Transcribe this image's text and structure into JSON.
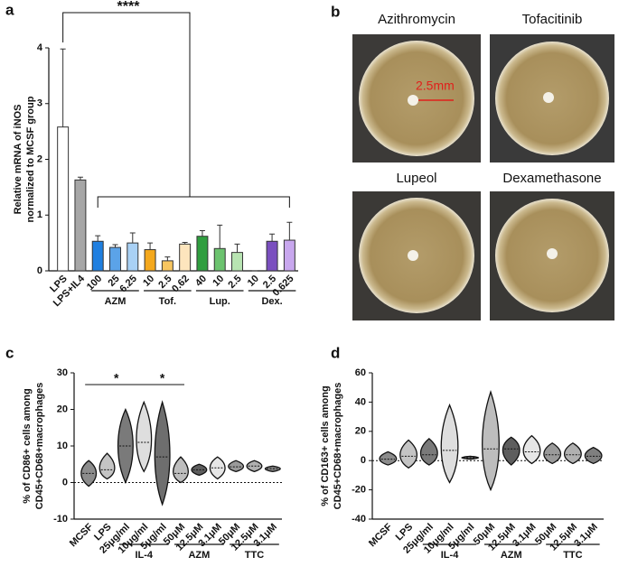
{
  "chart_data": [
    {
      "type": "bar",
      "panel": "a",
      "ylabel": [
        "Relative mRNA of iNOS",
        "normalized to MCSF group"
      ],
      "categories": [
        "LPS",
        "LPS+IL4",
        "100",
        "25",
        "6.25",
        "10",
        "2.5",
        "0.62",
        "40",
        "10",
        "2.5",
        "10",
        "2.5",
        "0.625"
      ],
      "values": [
        2.58,
        1.63,
        0.53,
        0.42,
        0.5,
        0.38,
        0.18,
        0.48,
        0.62,
        0.4,
        0.33,
        0,
        0.53,
        0.55
      ],
      "errors": [
        1.4,
        0.05,
        0.1,
        0.05,
        0.18,
        0.12,
        0.07,
        0.03,
        0.1,
        0.42,
        0.15,
        0,
        0.13,
        0.32
      ],
      "colors": [
        "#ffffff",
        "#a6a6a6",
        "#1f7fe0",
        "#5ba3e8",
        "#a9d1f5",
        "#f4a81d",
        "#f8c660",
        "#fde5bd",
        "#2f9e3f",
        "#6cc36f",
        "#b8e4b2",
        "#5b2c91",
        "#7a4fbf",
        "#c8a7ee"
      ],
      "groups": [
        "AZM",
        "Tof.",
        "Lup.",
        "Dex."
      ],
      "annotations": [
        "****"
      ],
      "ylim": [
        0,
        4
      ],
      "yticks": [
        0,
        1,
        2,
        3,
        4
      ]
    },
    {
      "type": "violin",
      "panel": "c",
      "ylabel": [
        "% of CD86+ cells among",
        "CD45+CD68+macrophages"
      ],
      "categories": [
        "MCSF",
        "LPS",
        "25μg/ml",
        "10μg/ml",
        "5μg/ml",
        "50μM",
        "12.5μM",
        "3.1μM",
        "50μM",
        "12.5μM",
        "3.1μM"
      ],
      "medians": [
        2.5,
        3.5,
        10,
        11,
        7,
        2.5,
        3.5,
        4,
        4.3,
        4.5,
        3.8
      ],
      "mins": [
        -1,
        1,
        0,
        3,
        -6,
        0,
        2,
        1,
        3,
        3,
        3
      ],
      "maxs": [
        6,
        8,
        20,
        22,
        22,
        7,
        5,
        7,
        6,
        6,
        4.5
      ],
      "colors": [
        "#8c8c8c",
        "#c4c4c4",
        "#7a7a7a",
        "#dedede",
        "#6e6e6e",
        "#bdbdbd",
        "#5e5e5e",
        "#e6e6e6",
        "#9a9a9a",
        "#b0b0b0",
        "#7f7f7f"
      ],
      "groups": [
        "IL-4",
        "AZM",
        "TTC"
      ],
      "annotations": [
        "*",
        "*"
      ],
      "ylim": [
        -10,
        30
      ],
      "yticks": [
        -10,
        0,
        10,
        20,
        30
      ]
    },
    {
      "type": "violin",
      "panel": "d",
      "ylabel": [
        "% of CD163+ cells among",
        "CD45+CD68+macrophages"
      ],
      "categories": [
        "MCSF",
        "LPS",
        "25μg/ml",
        "10μg/ml",
        "5μg/ml",
        "50μM",
        "12.5μM",
        "3.1μM",
        "50μM",
        "12.5μM",
        "3.1μM"
      ],
      "medians": [
        1,
        3,
        4,
        7,
        2,
        8,
        8,
        6,
        4,
        4,
        3
      ],
      "mins": [
        -3,
        -5,
        -3,
        -15,
        1,
        -20,
        -3,
        -2,
        -2,
        -2,
        -2
      ],
      "maxs": [
        6,
        14,
        15,
        38,
        3,
        47,
        16,
        17,
        12,
        12,
        9
      ],
      "colors": [
        "#8c8c8c",
        "#c4c4c4",
        "#7a7a7a",
        "#dedede",
        "#6e6e6e",
        "#bdbdbd",
        "#5e5e5e",
        "#e6e6e6",
        "#9a9a9a",
        "#b0b0b0",
        "#7f7f7f"
      ],
      "groups": [
        "IL-4",
        "AZM",
        "TTC"
      ],
      "ylim": [
        -40,
        60
      ],
      "yticks": [
        -40,
        -20,
        0,
        20,
        40,
        60
      ]
    }
  ],
  "photo_panel": {
    "panel": "b",
    "plates": [
      "Azithromycin",
      "Tofacitinib",
      "Lupeol",
      "Dexamethasone"
    ],
    "scale_label": "2.5mm"
  }
}
